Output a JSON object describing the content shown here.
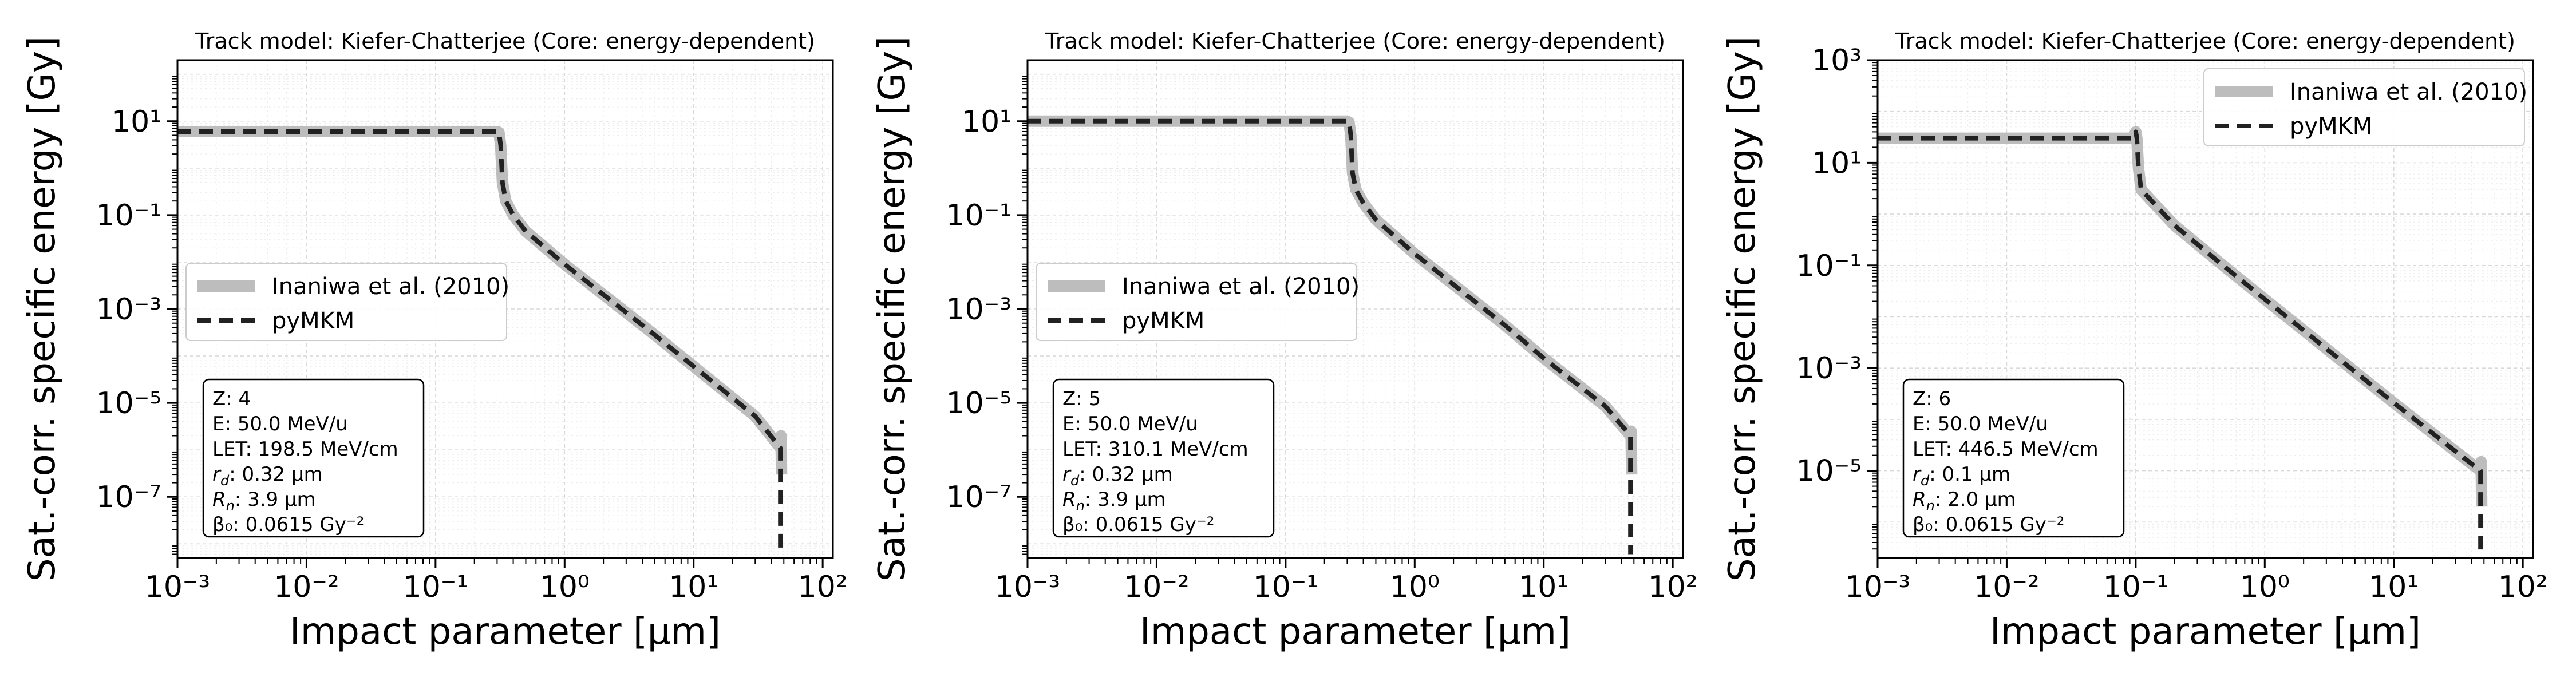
{
  "figure": {
    "subplots": [
      {
        "title": "Track model: Kiefer-Chatterjee (Core: energy-dependent)",
        "xlabel": "Impact parameter [µm]",
        "ylabel": "Sat.-corr. specific energy [Gy]",
        "legend": [
          "Inaniwa et al. (2010)",
          "pyMKM"
        ],
        "info": [
          "Z: 4",
          "E: 50.0 MeV/u",
          "LET: 198.5 MeV/cm",
          "r_d: 0.32 µm",
          "R_n: 3.9 µm",
          "β₀: 0.0615 Gy⁻²"
        ]
      },
      {
        "title": "Track model: Kiefer-Chatterjee (Core: energy-dependent)",
        "xlabel": "Impact parameter [µm]",
        "ylabel": "Sat.-corr. specific energy [Gy]",
        "legend": [
          "Inaniwa et al. (2010)",
          "pyMKM"
        ],
        "info": [
          "Z: 5",
          "E: 50.0 MeV/u",
          "LET: 310.1 MeV/cm",
          "r_d: 0.32 µm",
          "R_n: 3.9 µm",
          "β₀: 0.0615 Gy⁻²"
        ]
      },
      {
        "title": "Track model: Kiefer-Chatterjee (Core: energy-dependent)",
        "xlabel": "Impact parameter [µm]",
        "ylabel": "Sat.-corr. specific energy [Gy]",
        "legend": [
          "Inaniwa et al. (2010)",
          "pyMKM"
        ],
        "info": [
          "Z: 6",
          "E: 50.0 MeV/u",
          "LET: 446.5 MeV/cm",
          "r_d: 0.1 µm",
          "R_n: 2.0 µm",
          "β₀: 0.0615 Gy⁻²"
        ]
      }
    ]
  },
  "chart_data": [
    {
      "type": "line",
      "title": "Track model: Kiefer-Chatterjee (Core: energy-dependent)",
      "xlabel": "Impact parameter [µm]",
      "ylabel": "Sat.-corr. specific energy [Gy]",
      "xscale": "log",
      "yscale": "log",
      "xlim": [
        0.001,
        120
      ],
      "ylim": [
        5e-09,
        200
      ],
      "xticks": [
        0.001,
        0.01,
        0.1,
        1,
        10,
        100
      ],
      "xtick_labels": [
        "10⁻³",
        "10⁻²",
        "10⁻¹",
        "10⁰",
        "10¹",
        "10²"
      ],
      "yticks": [
        1e-07,
        1e-05,
        0.001,
        0.1,
        10
      ],
      "ytick_labels": [
        "10⁻⁷",
        "10⁻⁵",
        "10⁻³",
        "10⁻¹",
        "10¹"
      ],
      "grid": true,
      "legend_position": "center-left",
      "series": [
        {
          "name": "Inaniwa et al. (2010)",
          "color": "#bdbdbd",
          "style": "solid",
          "x": [
            0.001,
            0.3,
            0.31,
            0.32,
            0.33,
            0.35,
            0.4,
            0.5,
            1,
            5,
            10,
            30,
            47,
            47.5,
            48
          ],
          "y": [
            6,
            6,
            5.8,
            3,
            0.5,
            0.2,
            0.1,
            0.045,
            0.009,
            0.00028,
            6e-05,
            5.2e-06,
            1.1e-06,
            2e-06,
            3e-07
          ]
        },
        {
          "name": "pyMKM",
          "color": "#222222",
          "style": "dashed",
          "x": [
            0.001,
            0.3,
            0.31,
            0.32,
            0.33,
            0.35,
            0.4,
            0.5,
            1,
            5,
            10,
            30,
            47,
            47,
            47
          ],
          "y": [
            6,
            6,
            5.8,
            3,
            0.5,
            0.2,
            0.1,
            0.045,
            0.009,
            0.00028,
            6e-05,
            5.2e-06,
            1.1e-06,
            1e-07,
            6e-09
          ]
        }
      ]
    },
    {
      "type": "line",
      "title": "Track model: Kiefer-Chatterjee (Core: energy-dependent)",
      "xlabel": "Impact parameter [µm]",
      "ylabel": "Sat.-corr. specific energy [Gy]",
      "xscale": "log",
      "yscale": "log",
      "xlim": [
        0.001,
        120
      ],
      "ylim": [
        5e-09,
        200
      ],
      "xticks": [
        0.001,
        0.01,
        0.1,
        1,
        10,
        100
      ],
      "xtick_labels": [
        "10⁻³",
        "10⁻²",
        "10⁻¹",
        "10⁰",
        "10¹",
        "10²"
      ],
      "yticks": [
        1e-07,
        1e-05,
        0.001,
        0.1,
        10
      ],
      "ytick_labels": [
        "10⁻⁷",
        "10⁻⁵",
        "10⁻³",
        "10⁻¹",
        "10¹"
      ],
      "grid": true,
      "legend_position": "center-left",
      "series": [
        {
          "name": "Inaniwa et al. (2010)",
          "color": "#bdbdbd",
          "style": "solid",
          "x": [
            0.001,
            0.3,
            0.31,
            0.32,
            0.33,
            0.35,
            0.4,
            0.5,
            1,
            5,
            10,
            30,
            47,
            47.5,
            48
          ],
          "y": [
            10,
            10,
            9.5,
            5,
            0.8,
            0.35,
            0.18,
            0.08,
            0.015,
            0.00045,
            9e-05,
            8.5e-06,
            2e-06,
            2.5e-06,
            3e-07
          ]
        },
        {
          "name": "pyMKM",
          "color": "#222222",
          "style": "dashed",
          "x": [
            0.001,
            0.3,
            0.31,
            0.32,
            0.33,
            0.35,
            0.4,
            0.5,
            1,
            5,
            10,
            30,
            47,
            47,
            47
          ],
          "y": [
            10,
            10,
            9.5,
            5,
            0.8,
            0.35,
            0.18,
            0.08,
            0.015,
            0.00045,
            9e-05,
            8.5e-06,
            2e-06,
            1e-07,
            6e-09
          ]
        }
      ]
    },
    {
      "type": "line",
      "title": "Track model: Kiefer-Chatterjee (Core: energy-dependent)",
      "xlabel": "Impact parameter [µm]",
      "ylabel": "Sat.-corr. specific energy [Gy]",
      "xscale": "log",
      "yscale": "log",
      "xlim": [
        0.001,
        120
      ],
      "ylim": [
        2e-07,
        1000
      ],
      "xticks": [
        0.001,
        0.01,
        0.1,
        1,
        10,
        100
      ],
      "xtick_labels": [
        "10⁻³",
        "10⁻²",
        "10⁻¹",
        "10⁰",
        "10¹",
        "10²"
      ],
      "yticks": [
        1e-05,
        0.001,
        0.1,
        10,
        1000
      ],
      "ytick_labels": [
        "10⁻⁵",
        "10⁻³",
        "10⁻¹",
        "10¹",
        "10³"
      ],
      "grid": true,
      "legend_position": "upper right",
      "series": [
        {
          "name": "Inaniwa et al. (2010)",
          "color": "#bdbdbd",
          "style": "solid",
          "x": [
            0.001,
            0.095,
            0.1,
            0.102,
            0.105,
            0.11,
            0.2,
            0.5,
            1,
            5,
            10,
            30,
            47,
            47.5,
            48
          ],
          "y": [
            30,
            30,
            40,
            30,
            8,
            3,
            0.6,
            0.09,
            0.022,
            0.00085,
            0.00021,
            2.4e-05,
            1e-05,
            1.5e-05,
            2e-06
          ]
        },
        {
          "name": "pyMKM",
          "color": "#222222",
          "style": "dashed",
          "x": [
            0.001,
            0.095,
            0.1,
            0.102,
            0.105,
            0.11,
            0.2,
            0.5,
            1,
            5,
            10,
            30,
            47,
            47,
            47
          ],
          "y": [
            30,
            30,
            40,
            30,
            8,
            3,
            0.6,
            0.09,
            0.022,
            0.00085,
            0.00021,
            2.4e-05,
            1e-05,
            1e-06,
            2.2e-07
          ]
        }
      ]
    }
  ]
}
